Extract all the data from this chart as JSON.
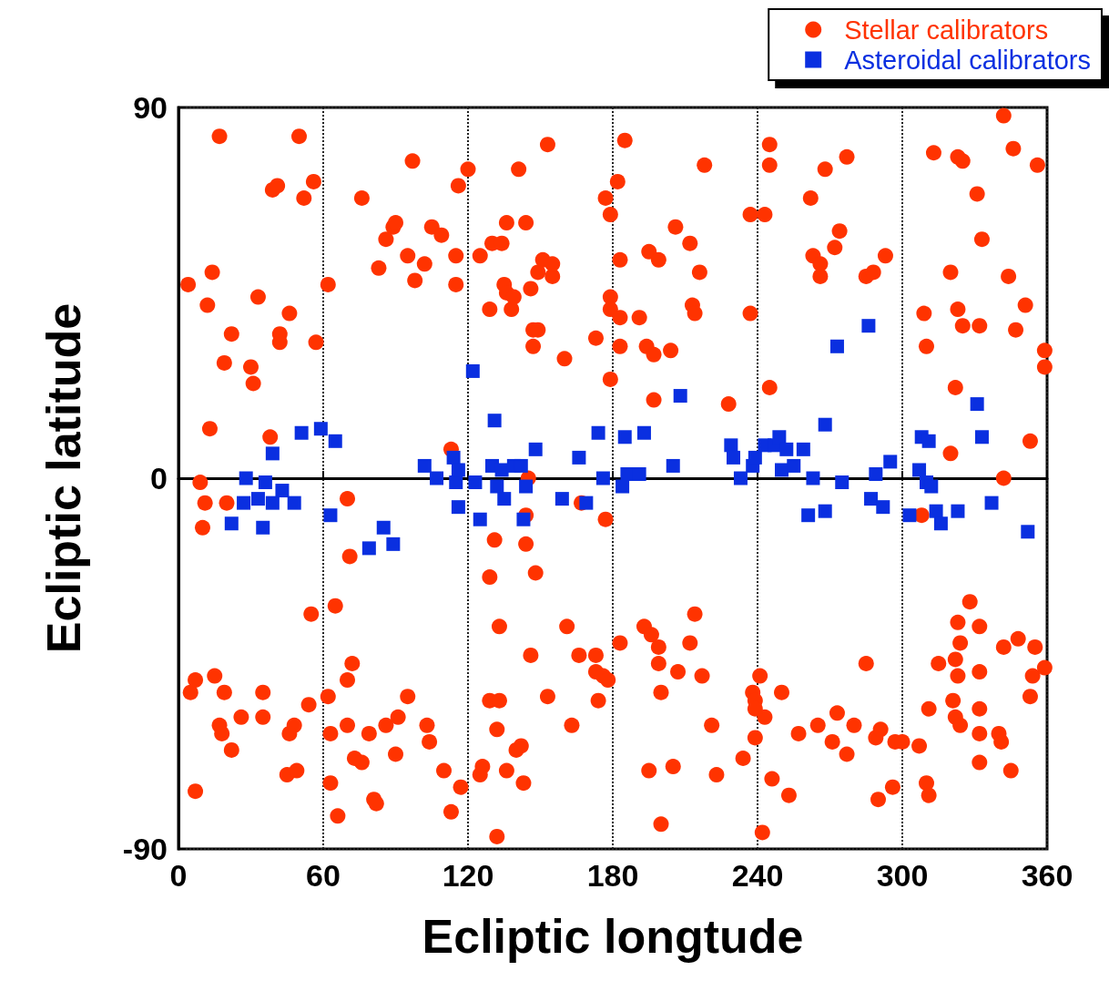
{
  "chart_data": {
    "type": "scatter",
    "xlabel": "Ecliptic longtude",
    "ylabel": "Ecliptic latitude",
    "xlim": [
      0,
      360
    ],
    "xticks": [
      0,
      60,
      120,
      180,
      240,
      300,
      360
    ],
    "ylim": [
      -90,
      90
    ],
    "yticks": [
      -90,
      0,
      90
    ],
    "grid": true,
    "legend": "top right",
    "series": [
      {
        "name": "Stellar calibrators",
        "color": "#ff3300",
        "marker": "circle",
        "x": [
          4,
          9,
          10,
          12,
          11,
          14,
          13,
          17,
          19,
          20,
          22,
          5,
          7,
          7,
          15,
          19,
          17,
          18,
          22,
          26,
          30,
          31,
          33,
          35,
          35,
          38,
          39,
          41,
          42,
          42,
          46,
          48,
          46,
          45,
          49,
          50,
          52,
          56,
          55,
          54,
          57,
          62,
          62,
          63,
          63,
          65,
          66,
          70,
          71,
          72,
          70,
          70,
          73,
          76,
          76,
          79,
          81,
          82,
          83,
          86,
          86,
          89,
          90,
          90,
          91,
          95,
          95,
          97,
          98,
          102,
          103,
          104,
          105,
          109,
          110,
          113,
          115,
          115,
          116,
          113,
          117,
          120,
          125,
          125,
          126,
          129,
          129,
          129,
          130,
          131,
          132,
          132,
          133,
          133,
          134,
          135,
          136,
          136,
          136,
          138,
          139,
          140,
          141,
          142,
          143,
          144,
          144,
          144,
          145,
          146,
          147,
          147,
          148,
          149,
          146,
          149,
          151,
          153,
          153,
          155,
          155,
          160,
          161,
          163,
          166,
          167,
          173,
          173,
          173,
          174,
          176,
          177,
          177,
          178,
          179,
          179,
          179,
          179,
          182,
          183,
          183,
          183,
          183,
          185,
          191,
          193,
          194,
          195,
          195,
          196,
          197,
          197,
          199,
          199,
          199,
          200,
          200,
          204,
          205,
          206,
          207,
          212,
          212,
          213,
          214,
          214,
          216,
          217,
          218,
          221,
          223,
          228,
          234,
          237,
          237,
          238,
          239,
          239,
          239,
          241,
          242,
          243,
          243,
          245,
          245,
          245,
          246,
          250,
          253,
          257,
          262,
          263,
          266,
          266,
          265,
          268,
          271,
          272,
          274,
          273,
          277,
          277,
          280,
          285,
          285,
          288,
          289,
          290,
          291,
          293,
          296,
          297,
          300,
          307,
          308,
          309,
          310,
          310,
          311,
          311,
          313,
          315,
          320,
          320,
          321,
          322,
          322,
          322,
          323,
          323,
          323,
          324,
          323,
          324,
          325,
          325,
          328,
          331,
          332,
          332,
          332,
          332,
          332,
          332,
          333,
          340,
          341,
          342,
          342,
          342,
          344,
          345,
          346,
          347,
          348,
          351,
          353,
          353,
          354,
          355,
          356,
          359,
          359,
          359
        ],
        "values": [
          47,
          -1,
          -12,
          42,
          -6,
          50,
          12,
          83,
          28,
          -6,
          35,
          -52,
          -49,
          -76,
          -48,
          -52,
          -60,
          -62,
          -66,
          -58,
          27,
          23,
          44,
          -52,
          -58,
          10,
          70,
          71,
          35,
          33,
          40,
          -60,
          -62,
          -72,
          -71,
          83,
          68,
          72,
          -33,
          -55,
          33,
          47,
          -53,
          -62,
          -74,
          -31,
          -82,
          -5,
          -19,
          -45,
          -49,
          -60,
          -68,
          -69,
          68,
          -62,
          -78,
          -79,
          51,
          58,
          -60,
          61,
          62,
          -67,
          -58,
          54,
          -53,
          77,
          48,
          52,
          -60,
          -64,
          61,
          59,
          -71,
          7,
          54,
          47,
          71,
          -81,
          -75,
          75,
          54,
          -72,
          -70,
          -24,
          -54,
          41,
          57,
          -15,
          -87,
          -61,
          -54,
          -36,
          57,
          47,
          62,
          45,
          -71,
          41,
          44,
          -66,
          75,
          -65,
          -74,
          62,
          -9,
          -16,
          0,
          -43,
          32,
          36,
          -23,
          36,
          46,
          50,
          53,
          81,
          -53,
          49,
          52,
          29,
          -36,
          -60,
          -43,
          -6,
          34,
          -43,
          -47,
          -54,
          -48,
          68,
          -10,
          -49,
          64,
          24,
          44,
          41,
          72,
          -40,
          39,
          53,
          32,
          82,
          39,
          -36,
          32,
          55,
          -71,
          -38,
          19,
          30,
          53,
          -45,
          -41,
          -84,
          -52,
          31,
          -70,
          61,
          -47,
          57,
          -40,
          42,
          40,
          -33,
          50,
          -48,
          76,
          -60,
          -72,
          18,
          -68,
          64,
          40,
          -52,
          -54,
          -56,
          -63,
          -48,
          -86,
          64,
          -58,
          22,
          76,
          81,
          -73,
          -52,
          -77,
          -62,
          68,
          54,
          52,
          49,
          -60,
          75,
          -64,
          56,
          60,
          -57,
          -67,
          78,
          -60,
          -45,
          49,
          50,
          -63,
          -78,
          -61,
          54,
          -75,
          -64,
          -64,
          -65,
          -9,
          40,
          32,
          -74,
          -77,
          -56,
          79,
          -45,
          6,
          50,
          -54,
          -44,
          22,
          -58,
          78,
          41,
          -35,
          -40,
          -48,
          -60,
          37,
          77,
          -30,
          69,
          37,
          -36,
          -47,
          -56,
          -62,
          -69,
          58,
          -62,
          -64,
          88,
          0,
          -41,
          49,
          -71,
          80,
          36,
          -39,
          42,
          9,
          -53,
          -48,
          -41,
          76,
          31,
          27,
          -46
        ]
      },
      {
        "name": "Asteroidal calibrators",
        "color": "#0a2fe0",
        "marker": "square",
        "x": [
          22,
          27,
          28,
          33,
          35,
          36,
          39,
          39,
          43,
          48,
          51,
          59,
          63,
          65,
          79,
          85,
          89,
          102,
          107,
          114,
          115,
          116,
          116,
          122,
          123,
          125,
          130,
          131,
          132,
          134,
          135,
          139,
          142,
          143,
          144,
          148,
          159,
          166,
          169,
          174,
          176,
          184,
          185,
          186,
          191,
          193,
          205,
          208,
          229,
          230,
          233,
          238,
          239,
          243,
          247,
          249,
          250,
          252,
          255,
          259,
          261,
          263,
          268,
          268,
          273,
          275,
          286,
          287,
          289,
          292,
          295,
          303,
          307,
          308,
          310,
          311,
          312,
          314,
          316,
          323,
          331,
          333,
          337,
          352
        ],
        "values": [
          -11,
          -6,
          0,
          -5,
          -12,
          -1,
          6,
          -6,
          -3,
          -6,
          11,
          12,
          -9,
          9,
          -17,
          -12,
          -16,
          3,
          0,
          5,
          -1,
          2,
          -7,
          26,
          -1,
          -10,
          3,
          14,
          -2,
          2,
          -5,
          3,
          3,
          -10,
          -2,
          7,
          -5,
          5,
          -6,
          11,
          0,
          -2,
          10,
          1,
          1,
          11,
          3,
          20,
          8,
          5,
          0,
          3,
          5,
          8,
          8,
          10,
          2,
          7,
          3,
          7,
          -9,
          0,
          13,
          -8,
          32,
          -1,
          37,
          -5,
          1,
          -7,
          4,
          -9,
          2,
          10,
          -1,
          9,
          -2,
          -8,
          -11,
          -8,
          18,
          10,
          -6,
          -13
        ]
      }
    ]
  }
}
